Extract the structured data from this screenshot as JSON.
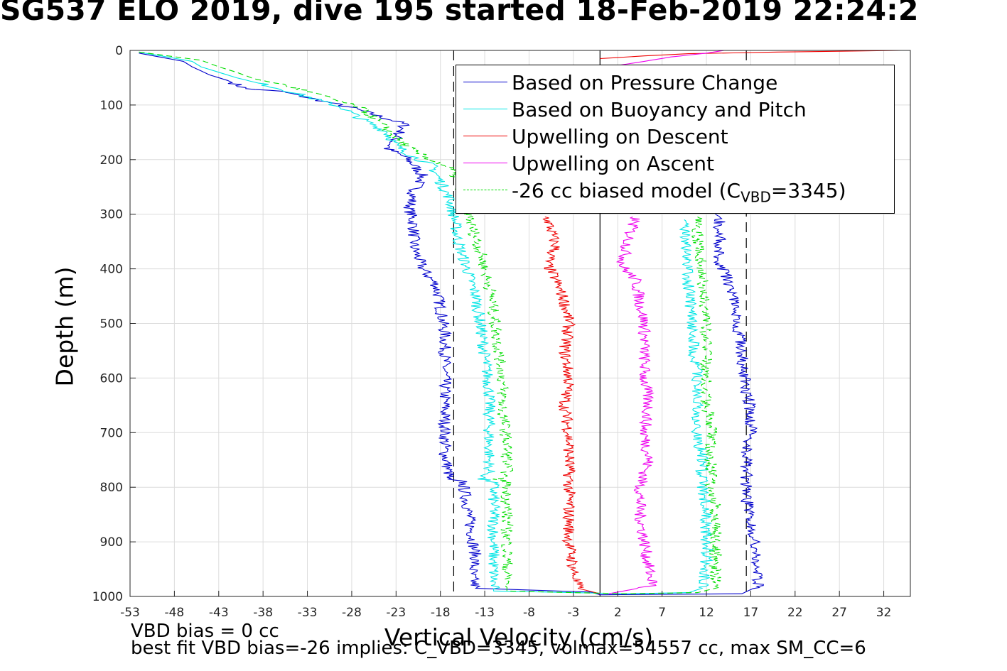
{
  "title": "SG537 ELO 2019, dive 195 started 18-Feb-2019 22:24:2",
  "footnotes": {
    "line1": "VBD bias = 0 cc",
    "line2": "best fit VBD bias=-26 implies: C_VBD=3345, volmax=54557 cc, max SM_CC=6"
  },
  "legend": {
    "item0": "Based on Pressure Change",
    "item1": "Based on Buoyancy and Pitch",
    "item2": "Upwelling on Descent",
    "item3": "Upwelling on Ascent",
    "item4_prefix": "-26 cc biased model (C",
    "item4_sub": "VBD",
    "item4_suffix": "=3345)"
  },
  "chart_data": {
    "type": "line",
    "xlabel": "Vertical Velocity (cm/s)",
    "ylabel": "Depth (m)",
    "xlim": [
      -53,
      35
    ],
    "ylim": [
      0,
      1000
    ],
    "y_reversed": true,
    "grid": true,
    "legend_position": "top-right",
    "x_ticks": [
      -53,
      -48,
      -43,
      -38,
      -33,
      -28,
      -23,
      -18,
      -13,
      -8,
      -3,
      2,
      7,
      12,
      17,
      22,
      27,
      32
    ],
    "y_ticks": [
      0,
      100,
      200,
      300,
      400,
      500,
      600,
      700,
      800,
      900,
      1000
    ],
    "vertical_lines": [
      {
        "x": -16.5,
        "style": "dashed",
        "color": "#000000"
      },
      {
        "x": 0,
        "style": "solid",
        "color": "#000000"
      },
      {
        "x": 16.5,
        "style": "dashed",
        "color": "#000000"
      }
    ],
    "series": [
      {
        "name": "Based on Pressure Change",
        "color": "#0000cc",
        "dash": "solid",
        "points": [
          [
            -52,
            5
          ],
          [
            -47,
            20
          ],
          [
            -46,
            30
          ],
          [
            -44,
            45
          ],
          [
            -42,
            55
          ],
          [
            -40,
            70
          ],
          [
            -36,
            75
          ],
          [
            -32,
            90
          ],
          [
            -28,
            105
          ],
          [
            -25,
            120
          ],
          [
            -22,
            135
          ],
          [
            -23,
            160
          ],
          [
            -24,
            180
          ],
          [
            -22,
            195
          ],
          [
            -21,
            210
          ],
          [
            -20,
            230
          ],
          [
            -21,
            260
          ],
          [
            -21.5,
            290
          ],
          [
            -21,
            320
          ],
          [
            -21,
            360
          ],
          [
            -20,
            400
          ],
          [
            -18.5,
            430
          ],
          [
            -18,
            470
          ],
          [
            -17.5,
            520
          ],
          [
            -17.5,
            560
          ],
          [
            -17.5,
            620
          ],
          [
            -17.5,
            680
          ],
          [
            -17.5,
            740
          ],
          [
            -17,
            780
          ],
          [
            -17.5,
            785
          ],
          [
            -15.5,
            790
          ],
          [
            -15,
            830
          ],
          [
            -14.5,
            880
          ],
          [
            -14,
            930
          ],
          [
            -14.5,
            960
          ],
          [
            -14,
            985
          ],
          [
            -1,
            992
          ],
          [
            0,
            997
          ],
          [
            16,
            995
          ],
          [
            18,
            980
          ],
          [
            17.5,
            940
          ],
          [
            17.5,
            900
          ],
          [
            17,
            860
          ],
          [
            16.5,
            820
          ],
          [
            16.5,
            780
          ],
          [
            16.5,
            740
          ],
          [
            17,
            700
          ],
          [
            17,
            660
          ],
          [
            16.5,
            620
          ],
          [
            16,
            580
          ],
          [
            16,
            540
          ],
          [
            15.5,
            500
          ],
          [
            15,
            460
          ],
          [
            14.5,
            420
          ],
          [
            13.5,
            390
          ],
          [
            13.5,
            350
          ],
          [
            13.5,
            310
          ],
          [
            13,
            300
          ]
        ]
      },
      {
        "name": "Based on Buoyancy and Pitch",
        "color": "#00e5e5",
        "dash": "solid",
        "points": [
          [
            -52,
            3
          ],
          [
            -46,
            20
          ],
          [
            -45,
            30
          ],
          [
            -43,
            40
          ],
          [
            -41,
            50
          ],
          [
            -38,
            62
          ],
          [
            -35,
            75
          ],
          [
            -32,
            90
          ],
          [
            -29,
            105
          ],
          [
            -27,
            125
          ],
          [
            -24,
            150
          ],
          [
            -23,
            175
          ],
          [
            -21,
            195
          ],
          [
            -19,
            210
          ],
          [
            -18,
            240
          ],
          [
            -17,
            270
          ],
          [
            -16.5,
            300
          ],
          [
            -16,
            350
          ],
          [
            -15,
            400
          ],
          [
            -14,
            450
          ],
          [
            -13.5,
            500
          ],
          [
            -13,
            560
          ],
          [
            -12.5,
            620
          ],
          [
            -12.5,
            680
          ],
          [
            -12.5,
            740
          ],
          [
            -12.5,
            775
          ],
          [
            -13.5,
            785
          ],
          [
            -12,
            790
          ],
          [
            -12,
            830
          ],
          [
            -12,
            880
          ],
          [
            -12,
            930
          ],
          [
            -12,
            960
          ],
          [
            -12,
            990
          ],
          [
            -3,
            993
          ],
          [
            3,
            995
          ],
          [
            10,
            993
          ],
          [
            11.5,
            985
          ],
          [
            12,
            950
          ],
          [
            12,
            900
          ],
          [
            12,
            850
          ],
          [
            11.5,
            800
          ],
          [
            11.5,
            750
          ],
          [
            11,
            700
          ],
          [
            11,
            650
          ],
          [
            11,
            600
          ],
          [
            10.5,
            550
          ],
          [
            10.5,
            500
          ],
          [
            10,
            450
          ],
          [
            10,
            400
          ],
          [
            9.5,
            350
          ],
          [
            9.5,
            310
          ]
        ]
      },
      {
        "name": "Upwelling on Descent",
        "color": "#ee0000",
        "dash": "solid",
        "points": [
          [
            -6,
            305
          ],
          [
            -5.5,
            330
          ],
          [
            -5,
            360
          ],
          [
            -6,
            390
          ],
          [
            -5,
            420
          ],
          [
            -4,
            460
          ],
          [
            -3.5,
            500
          ],
          [
            -4,
            550
          ],
          [
            -3.5,
            600
          ],
          [
            -4,
            650
          ],
          [
            -3.5,
            700
          ],
          [
            -3.5,
            750
          ],
          [
            -3.5,
            800
          ],
          [
            -3.5,
            850
          ],
          [
            -3.5,
            900
          ],
          [
            -3,
            950
          ],
          [
            -2.5,
            985
          ],
          [
            0,
            995
          ]
        ]
      },
      {
        "name": "Upwelling on Ascent",
        "color": "#ee00ee",
        "dash": "solid",
        "points": [
          [
            4,
            305
          ],
          [
            3.5,
            330
          ],
          [
            3,
            360
          ],
          [
            2.5,
            395
          ],
          [
            4,
            420
          ],
          [
            4.5,
            460
          ],
          [
            5,
            500
          ],
          [
            5,
            550
          ],
          [
            5,
            600
          ],
          [
            5.5,
            650
          ],
          [
            5,
            700
          ],
          [
            5.5,
            750
          ],
          [
            4.5,
            800
          ],
          [
            4.5,
            850
          ],
          [
            5,
            900
          ],
          [
            5.5,
            950
          ],
          [
            6,
            980
          ],
          [
            1,
            995
          ]
        ]
      },
      {
        "name": "-26 cc biased model (CVBD=3345)",
        "color": "#00dd00",
        "dash": "dashed",
        "points": [
          [
            -52,
            3
          ],
          [
            -45,
            18
          ],
          [
            -43,
            30
          ],
          [
            -41,
            40
          ],
          [
            -39,
            52
          ],
          [
            -36,
            62
          ],
          [
            -33,
            75
          ],
          [
            -30,
            90
          ],
          [
            -27,
            105
          ],
          [
            -25,
            130
          ],
          [
            -23,
            160
          ],
          [
            -21,
            185
          ],
          [
            -19,
            200
          ],
          [
            -17,
            215
          ],
          [
            -16,
            240
          ],
          [
            -15,
            280
          ],
          [
            -14.5,
            320
          ],
          [
            -13.5,
            370
          ],
          [
            -12.5,
            430
          ],
          [
            -12,
            480
          ],
          [
            -11.5,
            540
          ],
          [
            -11,
            600
          ],
          [
            -11,
            660
          ],
          [
            -10.5,
            720
          ],
          [
            -10.5,
            775
          ],
          [
            -11.5,
            785
          ],
          [
            -10.5,
            790
          ],
          [
            -10.5,
            840
          ],
          [
            -10.5,
            890
          ],
          [
            -10.5,
            940
          ],
          [
            -10.5,
            990
          ],
          [
            -3,
            993
          ],
          [
            3,
            995
          ],
          [
            11,
            993
          ],
          [
            13,
            985
          ],
          [
            13,
            940
          ],
          [
            13,
            890
          ],
          [
            13,
            840
          ],
          [
            12.5,
            790
          ],
          [
            12.5,
            740
          ],
          [
            12.5,
            690
          ],
          [
            12,
            640
          ],
          [
            12,
            590
          ],
          [
            12,
            540
          ],
          [
            12,
            490
          ],
          [
            11.5,
            440
          ],
          [
            11.5,
            390
          ],
          [
            11,
            340
          ],
          [
            11,
            305
          ]
        ]
      },
      {
        "name": "",
        "color": "#ee0000",
        "dash": "solid",
        "points": [
          [
            0,
            15
          ],
          [
            5,
            10
          ],
          [
            10,
            6
          ],
          [
            20,
            3
          ],
          [
            34,
            0
          ]
        ]
      },
      {
        "name": "",
        "color": "#ee00ee",
        "dash": "solid",
        "points": [
          [
            1,
            30
          ],
          [
            5,
            20
          ],
          [
            8,
            12
          ],
          [
            12,
            5
          ],
          [
            14,
            0
          ]
        ]
      }
    ]
  }
}
